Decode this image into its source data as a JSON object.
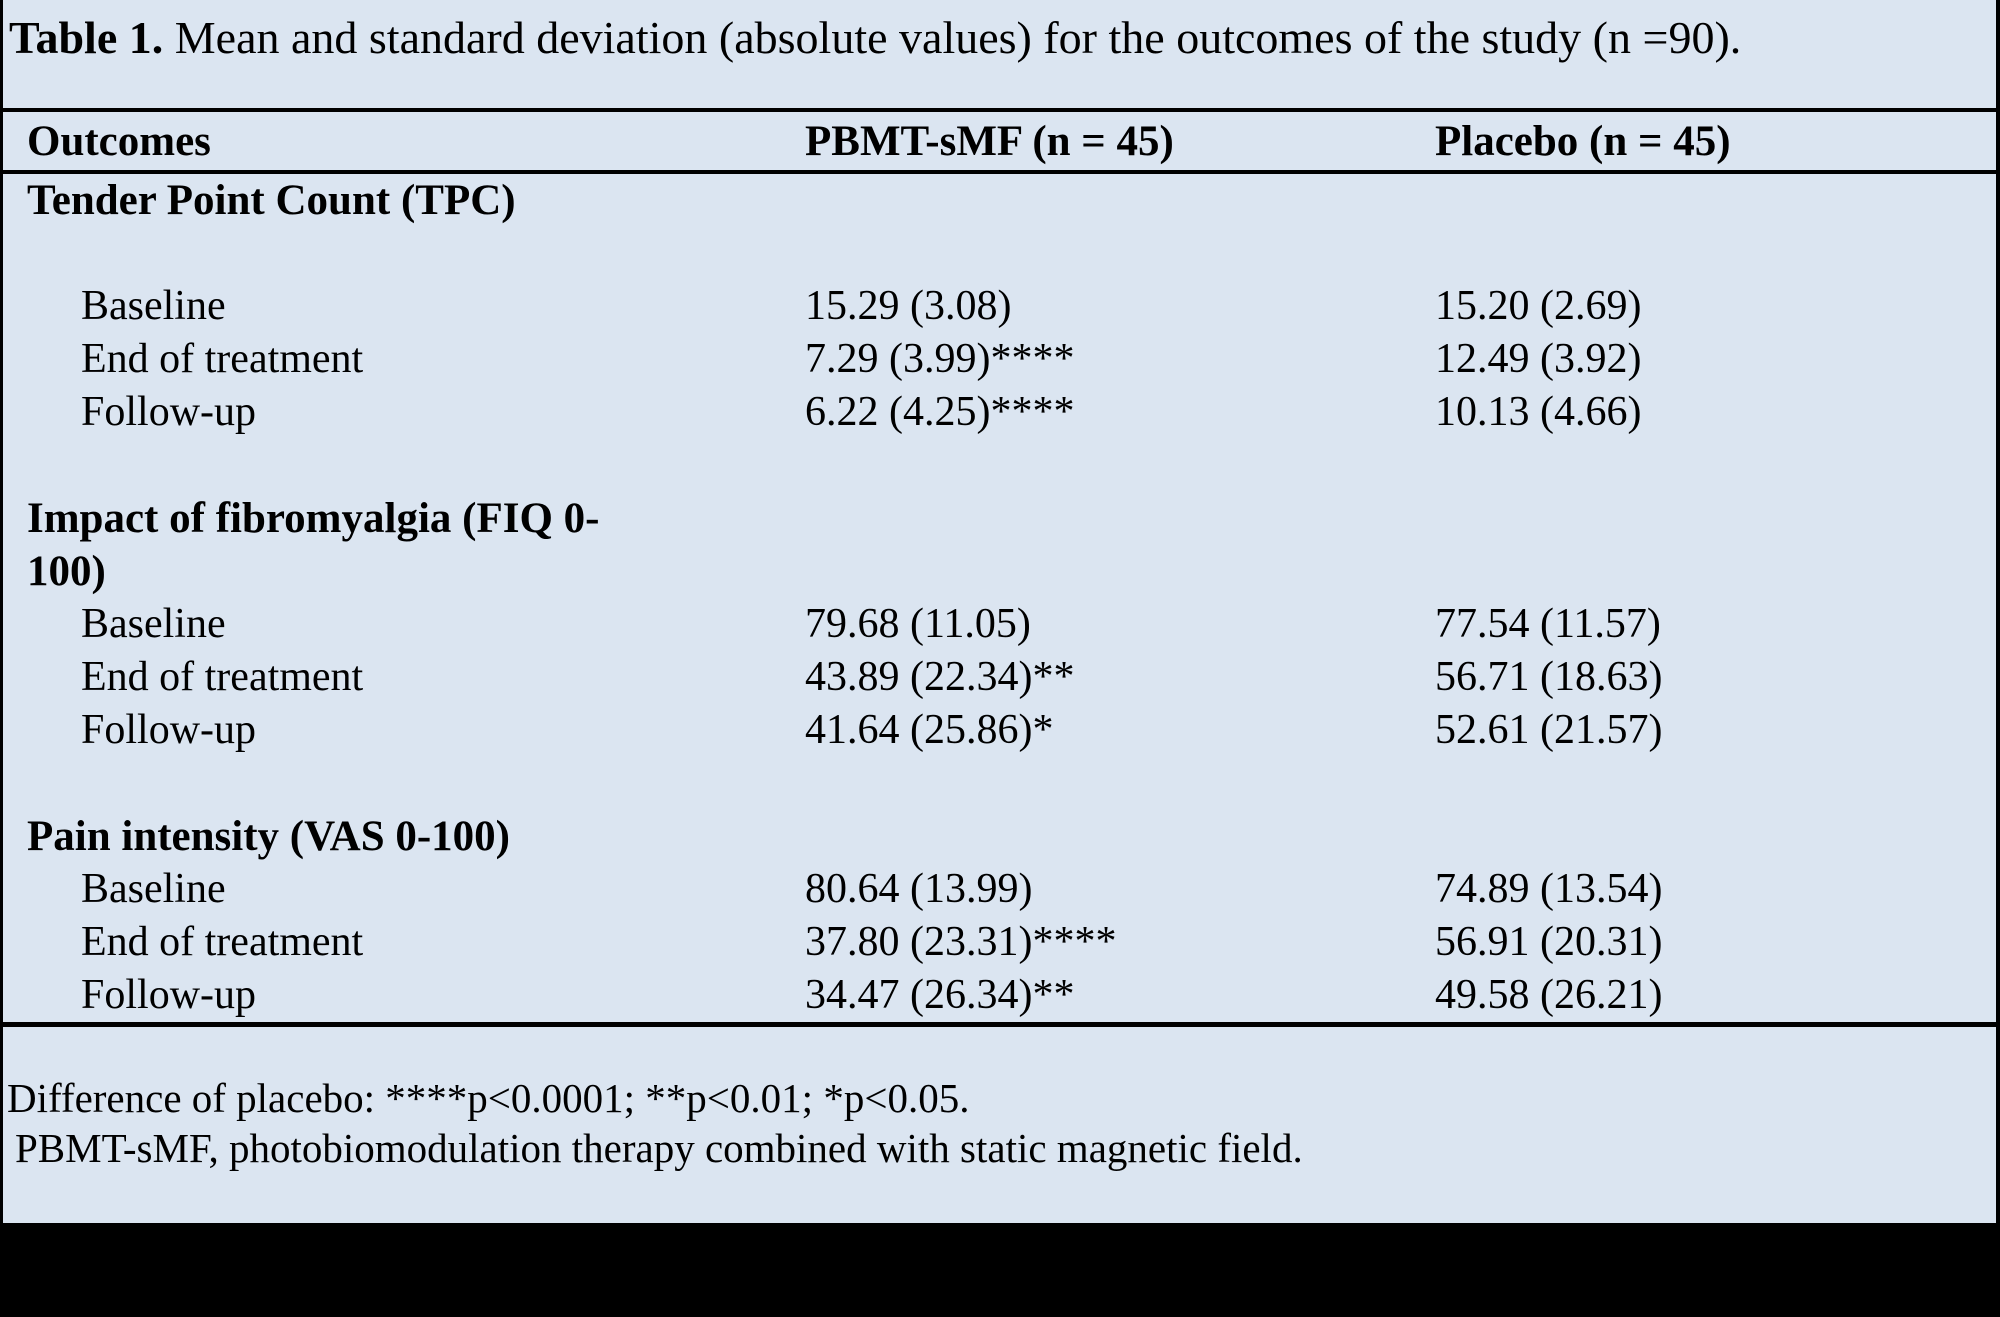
{
  "caption": {
    "label": "Table 1.",
    "text": " Mean and standard deviation (absolute values) for the outcomes of the study (n =90)."
  },
  "table": {
    "columns": [
      "Outcomes",
      "PBMT-sMF (n = 45)",
      "Placebo (n = 45)"
    ],
    "sections": [
      {
        "header": "Tender Point Count (TPC)",
        "blank_line_after_header": true,
        "rows": [
          {
            "label": "Baseline",
            "pbmt": "15.29 (3.08)",
            "placebo": "15.20 (2.69)"
          },
          {
            "label": "End of treatment",
            "pbmt": "7.29 (3.99)****",
            "placebo": "12.49 (3.92)"
          },
          {
            "label": "Follow-up",
            "pbmt": "6.22 (4.25)****",
            "placebo": "10.13 (4.66)"
          }
        ]
      },
      {
        "header": "Impact of fibromyalgia (FIQ 0-100)",
        "blank_line_after_header": false,
        "rows": [
          {
            "label": "Baseline",
            "pbmt": "79.68 (11.05)",
            "placebo": "77.54 (11.57)"
          },
          {
            "label": "End of treatment",
            "pbmt": "43.89 (22.34)**",
            "placebo": "56.71 (18.63)"
          },
          {
            "label": "Follow-up",
            "pbmt": "41.64 (25.86)*",
            "placebo": "52.61 (21.57)"
          }
        ]
      },
      {
        "header": "Pain intensity (VAS 0-100)",
        "blank_line_after_header": false,
        "rows": [
          {
            "label": "Baseline",
            "pbmt": "80.64 (13.99)",
            "placebo": "74.89 (13.54)"
          },
          {
            "label": "End of treatment",
            "pbmt": "37.80 (23.31)****",
            "placebo": "56.91 (20.31)"
          },
          {
            "label": "Follow-up",
            "pbmt": "34.47 (26.34)**",
            "placebo": "49.58 (26.21)"
          }
        ]
      }
    ]
  },
  "footnotes": [
    "Difference of placebo: ****p<0.0001; **p<0.01; *p<0.05.",
    "PBMT-sMF, photobiomodulation therapy combined with static magnetic field."
  ],
  "colors": {
    "sheet_background": "#dbe5f1",
    "text": "#000000",
    "rules_and_edges": "#000000"
  }
}
